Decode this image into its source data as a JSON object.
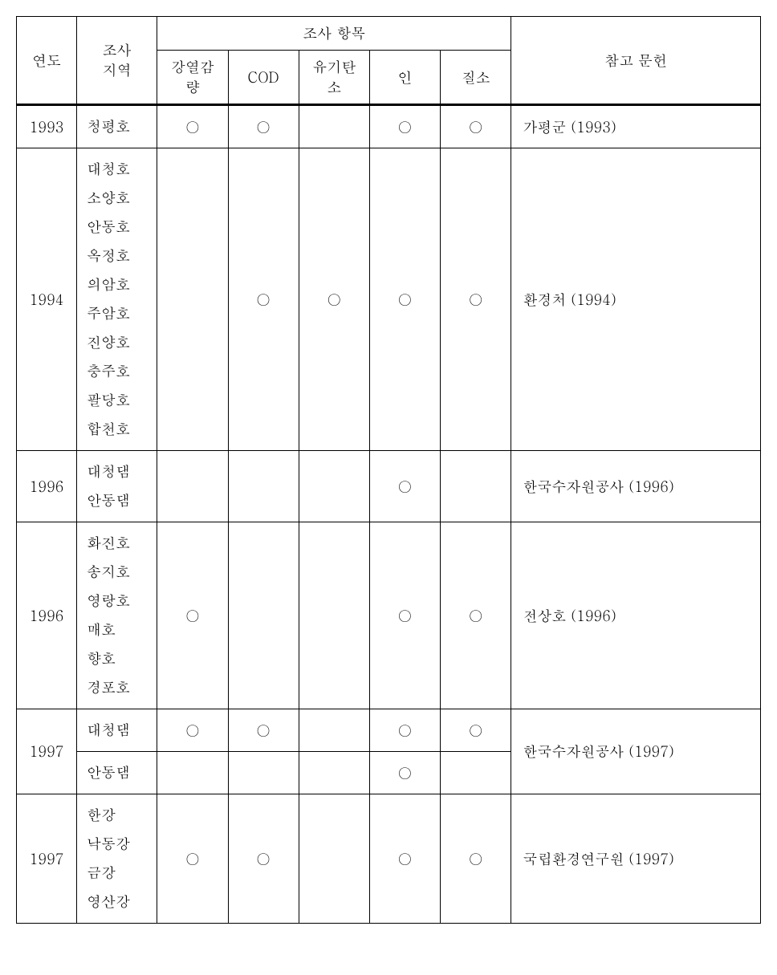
{
  "headers": {
    "year": "연도",
    "region": "조사\n지역",
    "survey_items_group": "조사 항목",
    "items": [
      "강열감량",
      "COD",
      "유기탄소",
      "인",
      "질소"
    ],
    "reference": "참고 문헌"
  },
  "mark": "○",
  "rows": [
    {
      "year": "1993",
      "region": "청평호",
      "marks": [
        true,
        true,
        false,
        true,
        true
      ],
      "reference": "가평군 (1993)"
    },
    {
      "year": "1994",
      "region": "대청호\n소양호\n안동호\n옥정호\n의암호\n주암호\n진양호\n충주호\n팔당호\n합천호",
      "marks": [
        false,
        true,
        true,
        true,
        true
      ],
      "reference": "환경처 (1994)"
    },
    {
      "year": "1996",
      "region": "대청댐\n안동댐",
      "marks": [
        false,
        false,
        false,
        true,
        false
      ],
      "reference": "한국수자원공사 (1996)"
    },
    {
      "year": "1996",
      "region": "화진호\n송지호\n영랑호\n매호\n향호\n경포호",
      "marks": [
        true,
        false,
        false,
        true,
        true
      ],
      "reference": "전상호 (1996)"
    },
    {
      "year": "1997",
      "sub_rows": [
        {
          "region": "대청댐",
          "marks": [
            true,
            true,
            false,
            true,
            true
          ]
        },
        {
          "region": "안동댐",
          "marks": [
            false,
            false,
            false,
            true,
            false
          ]
        }
      ],
      "reference": "한국수자원공사 (1997)"
    },
    {
      "year": "1997",
      "region": "한강\n낙동강\n금강\n영산강",
      "marks": [
        true,
        true,
        false,
        true,
        true
      ],
      "reference": "국립환경연구원 (1997)"
    }
  ]
}
